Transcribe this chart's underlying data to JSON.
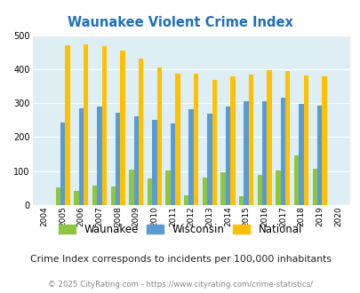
{
  "title": "Waunakee Violent Crime Index",
  "years": [
    2004,
    2005,
    2006,
    2007,
    2008,
    2009,
    2010,
    2011,
    2012,
    2013,
    2014,
    2015,
    2016,
    2017,
    2018,
    2019,
    2020
  ],
  "waunakee": [
    0,
    52,
    43,
    58,
    55,
    105,
    78,
    101,
    30,
    80,
    97,
    27,
    90,
    103,
    147,
    108,
    0
  ],
  "wisconsin": [
    0,
    244,
    284,
    291,
    272,
    260,
    250,
    240,
    281,
    270,
    291,
    305,
    305,
    317,
    298,
    293,
    0
  ],
  "national": [
    0,
    469,
    474,
    467,
    455,
    432,
    405,
    387,
    387,
    368,
    378,
    383,
    398,
    394,
    381,
    379,
    0
  ],
  "waunakee_color": "#8dc63f",
  "wisconsin_color": "#5b9bd5",
  "national_color": "#ffc000",
  "bg_color": "#ddeef5",
  "title_color": "#1f6fbf",
  "ylim": [
    0,
    500
  ],
  "yticks": [
    0,
    100,
    200,
    300,
    400,
    500
  ],
  "subtitle": "Crime Index corresponds to incidents per 100,000 inhabitants",
  "footer": "© 2025 CityRating.com - https://www.cityrating.com/crime-statistics/",
  "legend_labels": [
    "Waunakee",
    "Wisconsin",
    "National"
  ]
}
